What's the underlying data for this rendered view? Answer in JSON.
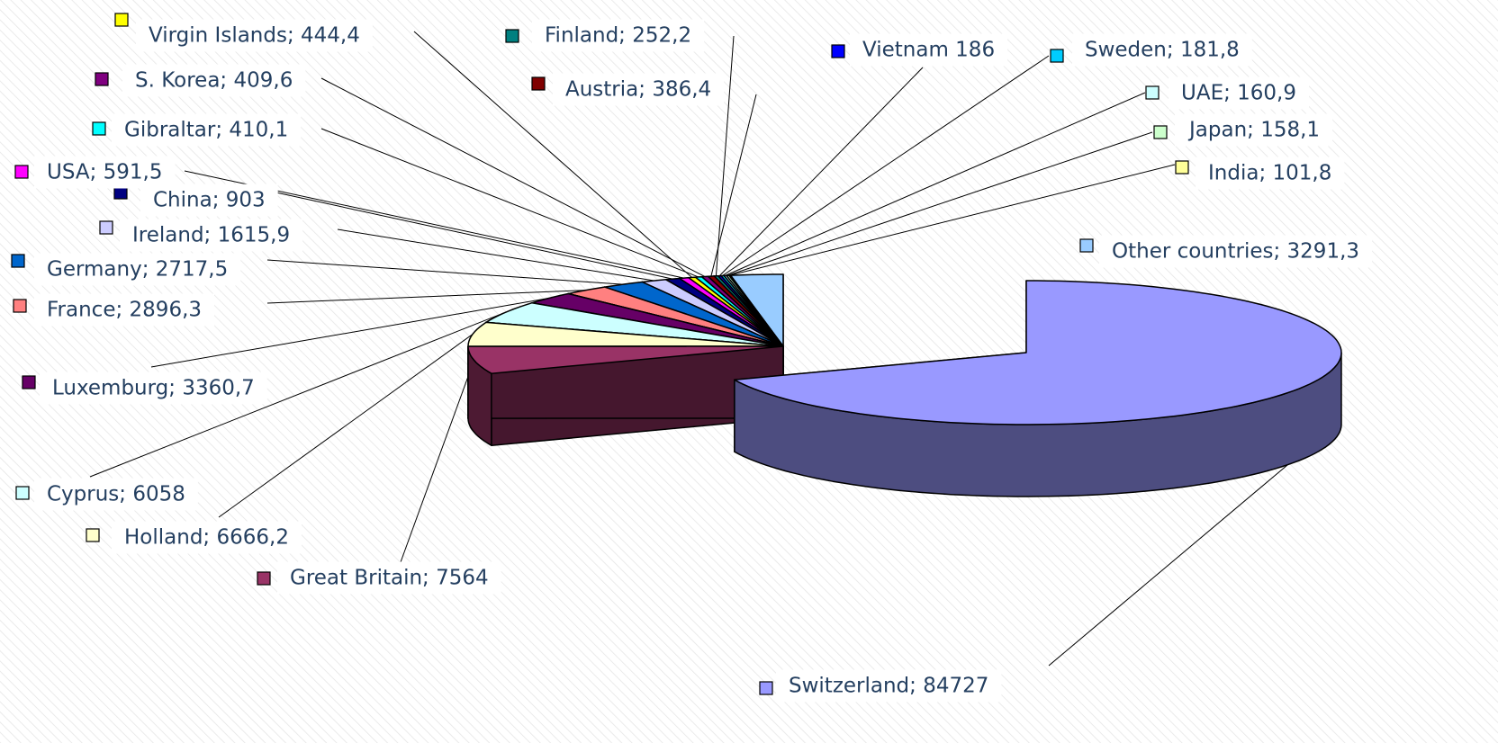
{
  "chart_data": {
    "type": "pie3d",
    "values": [
      84727,
      7564,
      6666.2,
      6058,
      3360.7,
      2896.3,
      2717.5,
      1615.9,
      903,
      591.5,
      444.4,
      410.1,
      409.6,
      386.4,
      252.2,
      186,
      181.8,
      160.9,
      158.1,
      101.8,
      3291.3
    ],
    "value_labels": [
      "Switzerland; 84727",
      "Great Britain; 7564",
      "Holland; 6666,2",
      "Cyprus;  6058",
      "Luxemburg; 3360,7",
      "France; 2896,3",
      "Germany; 2717,5",
      "Ireland; 1615,9",
      "China; 903",
      "USA; 591,5",
      "Virgin Islands; 444,4",
      "Gibraltar; 410,1",
      "S. Korea; 409,6",
      "Austria; 386,4",
      "Finland; 252,2",
      "Vietnam 186",
      "Sweden; 181,8",
      "UAE; 160,9",
      "Japan; 158,1",
      "India; 101,8",
      "Other countries; 3291,3"
    ],
    "colors": [
      "#9999ff",
      "#993366",
      "#ffffcc",
      "#ccffff",
      "#660066",
      "#ff8080",
      "#0066cc",
      "#ccccff",
      "#000080",
      "#ff00ff",
      "#ffff00",
      "#00ffff",
      "#800080",
      "#800000",
      "#008080",
      "#0000ff",
      "#00ccff",
      "#ccffff",
      "#ccffcc",
      "#ffff99",
      "#99ccff"
    ]
  }
}
